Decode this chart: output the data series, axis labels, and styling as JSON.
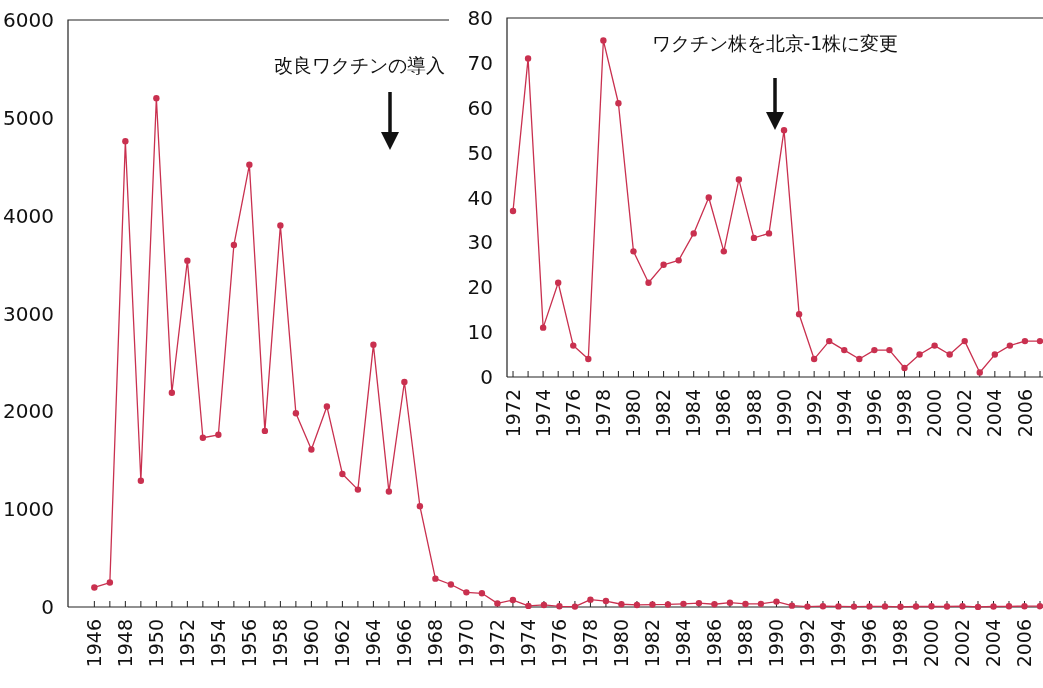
{
  "chart_data": [
    {
      "type": "line",
      "xlim": [
        1944.3,
        2007
      ],
      "ylim": [
        0,
        6000
      ],
      "yticks": [
        0,
        1000,
        2000,
        3000,
        4000,
        5000,
        6000
      ],
      "xticks": [
        1946,
        {
          "value": 1947,
          "label": null
        },
        1948,
        {
          "value": 1949,
          "label": null
        },
        1950,
        {
          "value": 1951,
          "label": null
        },
        1952,
        {
          "value": 1953,
          "label": null
        },
        1954,
        {
          "value": 1955,
          "label": null
        },
        1956,
        {
          "value": 1957,
          "label": null
        },
        1958,
        {
          "value": 1959,
          "label": null
        },
        1960,
        {
          "value": 1961,
          "label": null
        },
        1962,
        {
          "value": 1963,
          "label": null
        },
        1964,
        {
          "value": 1965,
          "label": null
        },
        1966,
        {
          "value": 1967,
          "label": null
        },
        1968,
        {
          "value": 1969,
          "label": null
        },
        1970,
        {
          "value": 1971,
          "label": null
        },
        1972,
        {
          "value": 1973,
          "label": null
        },
        1974,
        {
          "value": 1975,
          "label": null
        },
        1976,
        {
          "value": 1977,
          "label": null
        },
        1978,
        {
          "value": 1979,
          "label": null
        },
        1980,
        {
          "value": 1981,
          "label": null
        },
        1982,
        {
          "value": 1983,
          "label": null
        },
        1984,
        {
          "value": 1985,
          "label": null
        },
        1986,
        {
          "value": 1987,
          "label": null
        },
        1988,
        {
          "value": 1989,
          "label": null
        },
        1990,
        {
          "value": 1991,
          "label": null
        },
        1992,
        {
          "value": 1993,
          "label": null
        },
        1994,
        {
          "value": 1995,
          "label": null
        },
        1996,
        {
          "value": 1997,
          "label": null
        },
        1998,
        {
          "value": 1999,
          "label": null
        },
        2000,
        {
          "value": 2001,
          "label": null
        },
        2002,
        {
          "value": 2003,
          "label": null
        },
        2004,
        {
          "value": 2005,
          "label": null
        },
        2006,
        {
          "value": 2007,
          "label": null
        }
      ],
      "x": [
        1946,
        1947,
        1948,
        1949,
        1950,
        1951,
        1952,
        1953,
        1954,
        1955,
        1956,
        1957,
        1958,
        1959,
        1960,
        1961,
        1962,
        1963,
        1964,
        1965,
        1966,
        1967,
        1968,
        1969,
        1970,
        1971,
        1972,
        1973,
        1974,
        1975,
        1976,
        1977,
        1978,
        1979,
        1980,
        1981,
        1982,
        1983,
        1984,
        1985,
        1986,
        1987,
        1988,
        1989,
        1990,
        1991,
        1992,
        1993,
        1994,
        1995,
        1996,
        1997,
        1998,
        1999,
        2000,
        2001,
        2002,
        2003,
        2004,
        2005,
        2006,
        2007
      ],
      "series": [
        {
          "color": "#c9304f",
          "values": [
            200,
            250,
            4760,
            1290,
            5200,
            2190,
            3540,
            1730,
            1760,
            3700,
            4520,
            1800,
            3900,
            1980,
            1610,
            2050,
            1360,
            1200,
            2680,
            1180,
            2300,
            1030,
            290,
            230,
            150,
            140,
            37,
            71,
            11,
            21,
            7,
            4,
            75,
            61,
            28,
            21,
            25,
            26,
            32,
            40,
            28,
            44,
            31,
            32,
            55,
            14,
            4,
            8,
            6,
            4,
            6,
            6,
            2,
            5,
            7,
            5,
            8,
            1,
            5,
            7,
            8,
            8
          ]
        }
      ],
      "marker": "circle",
      "grid": false,
      "annotations": [
        "改良ワクチンの導入"
      ]
    },
    {
      "type": "line",
      "xlim": [
        1971.6,
        2007
      ],
      "ylim": [
        0,
        80
      ],
      "yticks": [
        0,
        10,
        20,
        30,
        40,
        50,
        60,
        70,
        80
      ],
      "xticks": [
        1972,
        {
          "value": 1973,
          "label": null
        },
        1974,
        {
          "value": 1975,
          "label": null
        },
        1976,
        {
          "value": 1977,
          "label": null
        },
        1978,
        {
          "value": 1979,
          "label": null
        },
        1980,
        {
          "value": 1981,
          "label": null
        },
        1982,
        {
          "value": 1983,
          "label": null
        },
        1984,
        {
          "value": 1985,
          "label": null
        },
        1986,
        {
          "value": 1987,
          "label": null
        },
        1988,
        {
          "value": 1989,
          "label": null
        },
        1990,
        {
          "value": 1991,
          "label": null
        },
        1992,
        {
          "value": 1993,
          "label": null
        },
        1994,
        {
          "value": 1995,
          "label": null
        },
        1996,
        {
          "value": 1997,
          "label": null
        },
        1998,
        {
          "value": 1999,
          "label": null
        },
        2000,
        {
          "value": 2001,
          "label": null
        },
        2002,
        {
          "value": 2003,
          "label": null
        },
        2004,
        {
          "value": 2005,
          "label": null
        },
        2006,
        {
          "value": 2007,
          "label": null
        }
      ],
      "x": [
        1972,
        1973,
        1974,
        1975,
        1976,
        1977,
        1978,
        1979,
        1980,
        1981,
        1982,
        1983,
        1984,
        1985,
        1986,
        1987,
        1988,
        1989,
        1990,
        1991,
        1992,
        1993,
        1994,
        1995,
        1996,
        1997,
        1998,
        1999,
        2000,
        2001,
        2002,
        2003,
        2004,
        2005,
        2006,
        2007
      ],
      "series": [
        {
          "color": "#c9304f",
          "values": [
            37,
            71,
            11,
            21,
            7,
            4,
            75,
            61,
            28,
            21,
            25,
            26,
            32,
            40,
            28,
            44,
            31,
            32,
            55,
            14,
            4,
            8,
            6,
            4,
            6,
            6,
            2,
            5,
            7,
            5,
            8,
            1,
            5,
            7,
            8,
            8
          ]
        }
      ],
      "marker": "circle",
      "grid": false,
      "annotations": [
        "ワクチン株を北京-1株に変更"
      ]
    }
  ]
}
